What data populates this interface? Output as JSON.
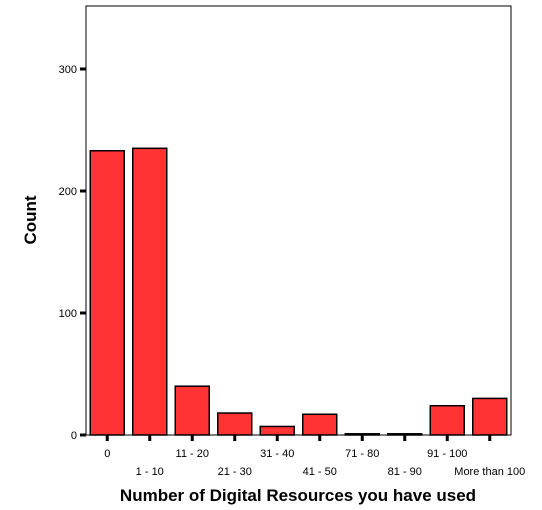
{
  "chart_data": {
    "type": "bar",
    "categories": [
      "0",
      "1 - 10",
      "11 - 20",
      "21 - 30",
      "31 - 40",
      "41 - 50",
      "71 - 80",
      "81 - 90",
      "91 - 100",
      "More than 100"
    ],
    "values": [
      233,
      235,
      40,
      18,
      7,
      17,
      1,
      1,
      24,
      30
    ],
    "title": "",
    "xlabel": "Number of Digital Resources you have used",
    "ylabel": "Count",
    "ylim": [
      0,
      350
    ],
    "yticks": [
      0,
      100,
      200,
      300
    ],
    "grid": false,
    "bar_color": "#ff3333",
    "bar_edge_color": "#000000"
  }
}
